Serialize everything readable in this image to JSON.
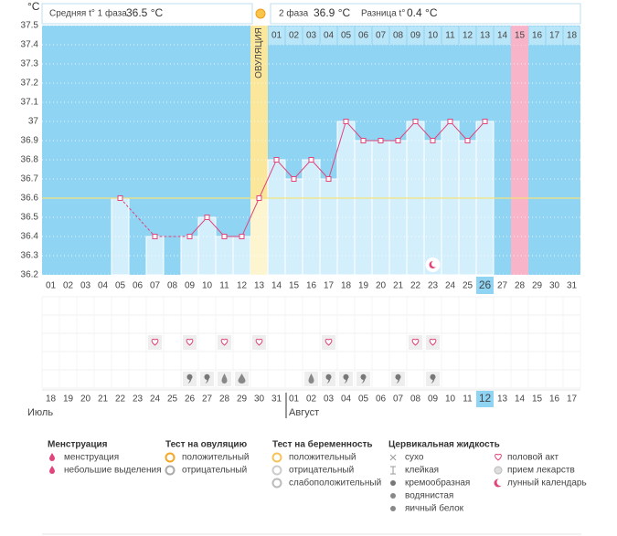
{
  "header": {
    "phase1_label": "Средняя t° 1 фаза",
    "phase1_value": "36.5 °C",
    "phase2_label": "2 фаза",
    "phase2_value": "36.9 °C",
    "diff_label": "Разница t°",
    "diff_value": "0.4 °C"
  },
  "chart_data": {
    "type": "line",
    "y_label": "°C",
    "ovulation_label": "ОВУЛЯЦИЯ",
    "categories": [
      "01",
      "02",
      "03",
      "04",
      "05",
      "06",
      "07",
      "08",
      "09",
      "10",
      "11",
      "12",
      "13",
      "14",
      "15",
      "16",
      "17",
      "18",
      "19",
      "20",
      "21",
      "22",
      "23",
      "24",
      "25",
      "26",
      "27",
      "28",
      "29",
      "30",
      "31"
    ],
    "values": [
      null,
      null,
      null,
      null,
      36.6,
      null,
      36.4,
      null,
      36.4,
      36.5,
      36.4,
      36.4,
      36.6,
      36.8,
      36.7,
      36.8,
      36.7,
      37.0,
      36.9,
      36.9,
      36.9,
      37.0,
      36.9,
      37.0,
      36.9,
      37.0,
      null,
      null,
      null,
      null,
      null
    ],
    "phase2_days": [
      null,
      null,
      null,
      null,
      null,
      null,
      null,
      null,
      null,
      null,
      null,
      null,
      null,
      "01",
      "02",
      "03",
      "04",
      "05",
      "06",
      "07",
      "08",
      "09",
      "10",
      "11",
      "12",
      "13",
      "14",
      "15",
      "16",
      "17",
      "18"
    ],
    "dates": [
      "18",
      "19",
      "20",
      "21",
      "22",
      "23",
      "24",
      "25",
      "26",
      "27",
      "28",
      "29",
      "30",
      "31",
      "01",
      "02",
      "03",
      "04",
      "05",
      "06",
      "07",
      "08",
      "09",
      "10",
      "11",
      "12",
      "13",
      "14",
      "15",
      "16",
      "17"
    ],
    "cover_line": 36.6,
    "color": "#e0457b",
    "ylim": [
      36.2,
      37.5
    ],
    "yticks": [
      36.2,
      36.3,
      36.4,
      36.5,
      36.6,
      36.7,
      36.8,
      36.9,
      37,
      37.1,
      37.2,
      37.3,
      37.4,
      37.5
    ],
    "grid": true
  },
  "months": [
    "Июль",
    "Август"
  ],
  "legend": [
    {
      "title": "Менструация",
      "items": [
        "менструация",
        "небольшие выделения"
      ]
    },
    {
      "title": "Тест на овуляцию",
      "items": [
        "положительный",
        "отрицательный"
      ]
    },
    {
      "title": "Тест на беременность",
      "items": [
        "положительный",
        "отрицательный",
        "слабоположительный"
      ]
    },
    {
      "title": "Цервикальная жидкость",
      "items": [
        "сухо",
        "клейкая",
        "кремообразная",
        "водянистая",
        "яичный белок"
      ]
    }
  ],
  "extras": [
    "половой акт",
    "прием лекарств",
    "лунный календарь"
  ]
}
